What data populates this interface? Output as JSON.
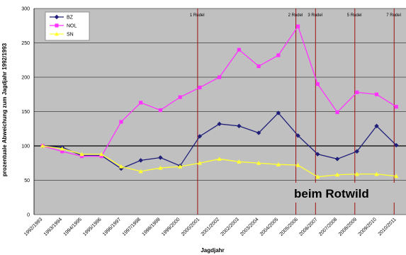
{
  "chart_data": {
    "type": "line",
    "ylabel": "prozentuale Abweichung zum Jagdjahr 1992/1993",
    "xlabel": "Jagdjahr",
    "ylim": [
      0,
      300
    ],
    "yticks": [
      0,
      50,
      100,
      150,
      200,
      250,
      300
    ],
    "grid": true,
    "legend_position": "top-left",
    "plot_background": "#c0c0c0",
    "categories": [
      "1992/1993",
      "1993/1994",
      "1994/1995",
      "1995/1996",
      "1996/1997",
      "1997/1998",
      "1998/1999",
      "1999/2000",
      "2000/2001",
      "2001/2002",
      "2002/2003",
      "2003/2004",
      "2004/2005",
      "2005/2006",
      "2006/2007",
      "2007/2008",
      "2008/2009",
      "2009/2010",
      "2010/2011"
    ],
    "series": [
      {
        "name": "BZ",
        "color": "#1f1f7a",
        "marker": "diamond",
        "values": [
          100,
          98,
          86,
          86,
          67,
          79,
          83,
          71,
          114,
          132,
          129,
          119,
          148,
          115,
          88,
          81,
          92,
          129,
          101
        ]
      },
      {
        "name": "NOL",
        "color": "#ff33ff",
        "marker": "square",
        "values": [
          100,
          92,
          85,
          85,
          135,
          163,
          152,
          171,
          185,
          200,
          240,
          216,
          232,
          274,
          190,
          149,
          178,
          175,
          157
        ]
      },
      {
        "name": "SN",
        "color": "#ffff33",
        "marker": "triangle",
        "values": [
          100,
          96,
          88,
          88,
          70,
          63,
          68,
          70,
          75,
          81,
          77,
          75,
          73,
          72,
          55,
          58,
          59,
          59,
          56
        ]
      }
    ],
    "vlines": [
      {
        "x": "2000/2001",
        "label": "1 Rudel"
      },
      {
        "x": "2005/2006",
        "label": "2 Rudel"
      },
      {
        "x": "2006/2007",
        "label": "3 Rudel"
      },
      {
        "x": "2008/2009",
        "label": "5 Rudel"
      },
      {
        "x": "2010/2011",
        "label": "7 Rudel"
      }
    ],
    "annotation": "beim Rotwild"
  }
}
